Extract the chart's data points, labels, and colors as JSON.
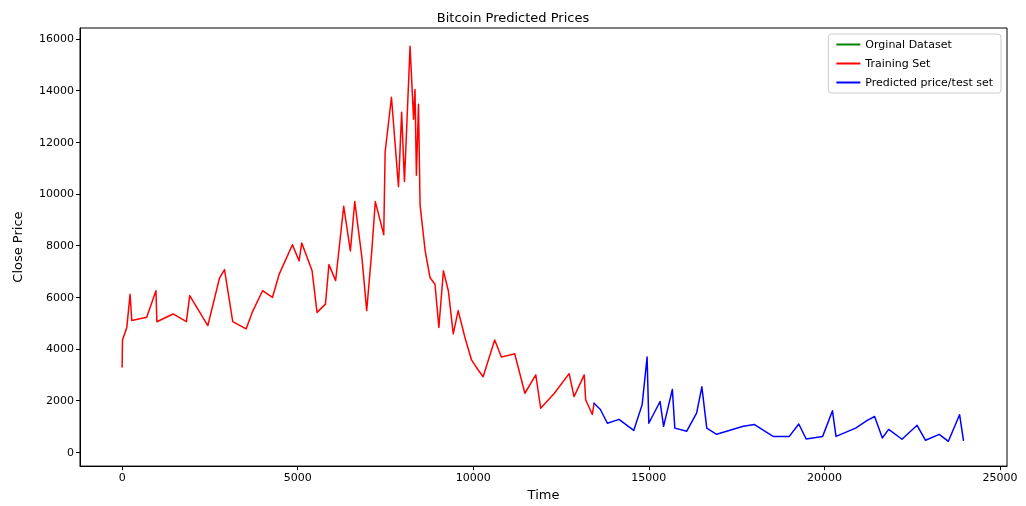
{
  "chart_data": {
    "type": "line",
    "title": "Bitcoin Predicted Prices",
    "xlabel": "Time",
    "ylabel": "Close Price",
    "xlim": [
      -1200,
      25200
    ],
    "xticks": [
      0,
      5000,
      10000,
      15000,
      20000,
      25000
    ],
    "ylim": [
      -540,
      16420
    ],
    "yticks": [
      0,
      2000,
      4000,
      6000,
      8000,
      10000,
      12000,
      14000,
      16000
    ],
    "grid": false,
    "legend": "top right",
    "marker": "none",
    "line_style": "solid",
    "series": [
      {
        "name": "Orginal Dataset",
        "color": "#008000"
      },
      {
        "name": "Training Set",
        "color": "#ff0000",
        "x": [
          0,
          10,
          133,
          226,
          275,
          700,
          963,
          990,
          1450,
          1830,
          1925,
          2440,
          2775,
          2915,
          3150,
          3530,
          3710,
          4000,
          4280,
          4470,
          4850,
          5040,
          5115,
          5410,
          5550,
          5790,
          5890,
          6080,
          6310,
          6500,
          6625,
          6830,
          6965,
          7110,
          7210,
          7450,
          7490,
          7670,
          7870,
          7960,
          8040,
          8200,
          8300,
          8340,
          8380,
          8440,
          8485,
          8630,
          8770,
          8910,
          9020,
          9150,
          9290,
          9430,
          9570,
          9760,
          9950,
          10140,
          10280,
          10610,
          10800,
          11180,
          11470,
          11780,
          11920,
          12310,
          12730,
          12870,
          13160,
          13200,
          13390,
          13440
        ],
        "values": [
          3300,
          4340,
          4830,
          6110,
          5100,
          5220,
          6250,
          5050,
          5350,
          5050,
          6060,
          4900,
          6750,
          7070,
          5050,
          4770,
          5430,
          6250,
          5990,
          6880,
          8030,
          7400,
          8100,
          7020,
          5410,
          5730,
          7260,
          6640,
          9520,
          7790,
          9700,
          7520,
          5480,
          7790,
          9700,
          8420,
          11620,
          13740,
          10280,
          13160,
          10480,
          15710,
          12890,
          14040,
          10720,
          13470,
          9570,
          7790,
          6750,
          6500,
          4830,
          7020,
          6250,
          4580,
          5480,
          4450,
          3570,
          3180,
          2920,
          4340,
          3680,
          3810,
          2280,
          2990,
          1700,
          2280,
          3040,
          2150,
          2990,
          2030,
          1460,
          1890
        ]
      },
      {
        "name": "Predicted price/test set",
        "color": "#0000ff",
        "x": [
          13440,
          13620,
          13820,
          14150,
          14570,
          14810,
          14950,
          15000,
          15320,
          15420,
          15670,
          15740,
          16080,
          16360,
          16510,
          16650,
          16930,
          17690,
          18010,
          18540,
          19000,
          19270,
          19480,
          19950,
          20230,
          20330,
          20890,
          21220,
          21430,
          21650,
          21830,
          22210,
          22640,
          22880,
          23270,
          23530,
          23850,
          23960
        ],
        "values": [
          1890,
          1650,
          1120,
          1270,
          840,
          1840,
          3680,
          1120,
          1960,
          1000,
          2430,
          930,
          810,
          1510,
          2530,
          930,
          690,
          1000,
          1070,
          610,
          610,
          1090,
          510,
          610,
          1600,
          610,
          930,
          1230,
          1380,
          550,
          880,
          500,
          1040,
          460,
          690,
          420,
          1450,
          460
        ]
      }
    ]
  }
}
